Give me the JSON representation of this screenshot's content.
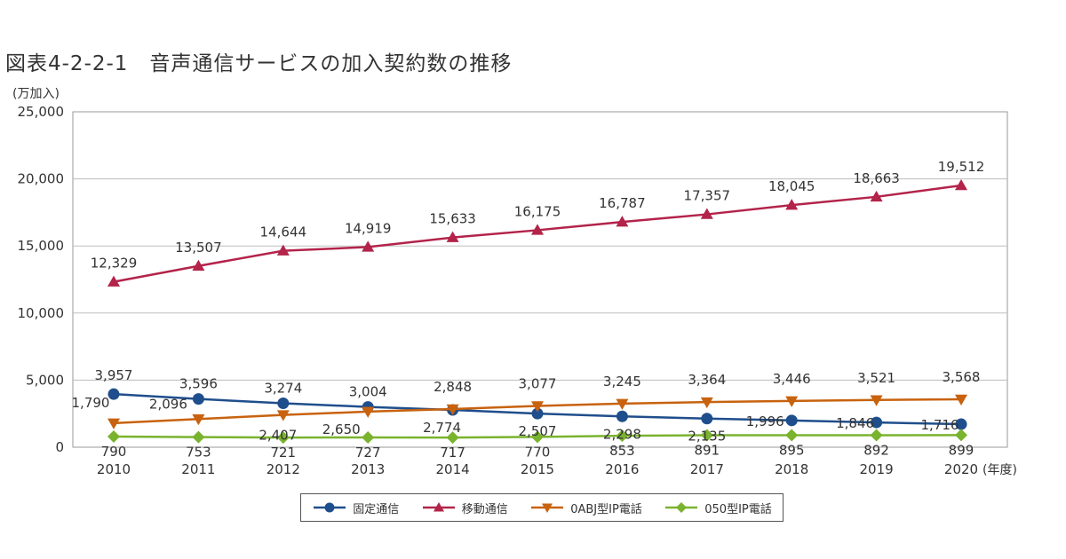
{
  "chart_data": {
    "type": "line",
    "title": "図表4-2-2-1　音声通信サービスの加入契約数の推移",
    "y_unit_label": "(万加入)",
    "x_unit_label": "(年度)",
    "ylim": [
      0,
      25000
    ],
    "yticks": [
      "0",
      "5,000",
      "10,000",
      "15,000",
      "20,000",
      "25,000"
    ],
    "ytick_values": [
      0,
      5000,
      10000,
      15000,
      20000,
      25000
    ],
    "categories": [
      "2010",
      "2011",
      "2012",
      "2013",
      "2014",
      "2015",
      "2016",
      "2017",
      "2018",
      "2019",
      "2020"
    ],
    "grid": "horizontal",
    "legend_position": "bottom",
    "series": [
      {
        "name": "固定通信",
        "marker": "circle",
        "color": "#1f4e8c",
        "values": [
          3957,
          3596,
          3274,
          3004,
          2774,
          2507,
          2298,
          2135,
          1996,
          1846,
          1716
        ],
        "labels": [
          "3,957",
          "3,596",
          "3,274",
          "3,004",
          "2,774",
          "2,507",
          "2,298",
          "2,135",
          "1,996",
          "1,846",
          "1,716"
        ]
      },
      {
        "name": "移動通信",
        "marker": "triangle-up",
        "color": "#b3234a",
        "values": [
          12329,
          13507,
          14644,
          14919,
          15633,
          16175,
          16787,
          17357,
          18045,
          18663,
          19512
        ],
        "labels": [
          "12,329",
          "13,507",
          "14,644",
          "14,919",
          "15,633",
          "16,175",
          "16,787",
          "17,357",
          "18,045",
          "18,663",
          "19,512"
        ]
      },
      {
        "name": "0ABJ型IP電話",
        "marker": "triangle-down",
        "color": "#c8620e",
        "values": [
          1790,
          2096,
          2407,
          2650,
          2848,
          3077,
          3245,
          3364,
          3446,
          3521,
          3568
        ],
        "labels": [
          "1,790",
          "2,096",
          "2,407",
          "2,650",
          "2,848",
          "3,077",
          "3,245",
          "3,364",
          "3,446",
          "3,521",
          "3,568"
        ]
      },
      {
        "name": "050型IP電話",
        "marker": "diamond",
        "color": "#7ab32e",
        "values": [
          790,
          753,
          721,
          727,
          717,
          770,
          853,
          891,
          895,
          892,
          899
        ],
        "labels": [
          "790",
          "753",
          "721",
          "727",
          "717",
          "770",
          "853",
          "891",
          "895",
          "892",
          "899"
        ]
      }
    ]
  }
}
